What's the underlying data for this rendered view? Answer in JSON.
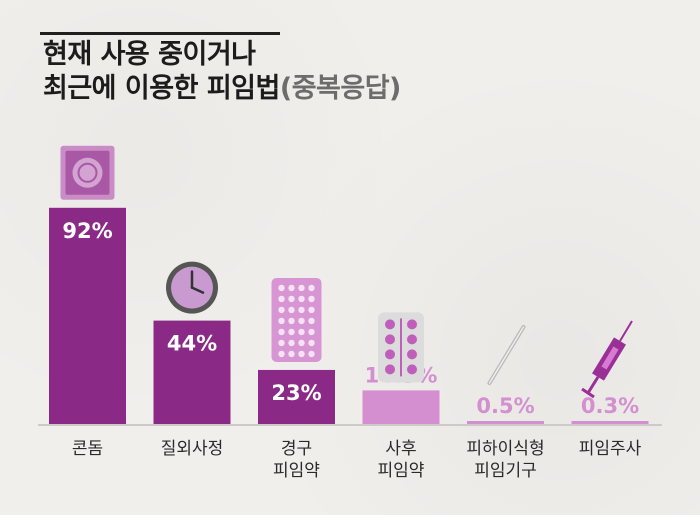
{
  "title": {
    "line1": "현재 사용 중이거나",
    "line2": "최근에 이용한 피임법",
    "note": "(중복응답)"
  },
  "chart_data": {
    "type": "bar",
    "categories": [
      "콘돔",
      "질외사정",
      "경구\n피임약",
      "사후\n피임약",
      "피하이식형\n피임기구",
      "피임주사"
    ],
    "values": [
      92,
      44,
      23,
      14.3,
      0.5,
      0.3
    ],
    "value_labels": [
      "92%",
      "44%",
      "23%",
      "14.3%",
      "0.5%",
      "0.3%"
    ],
    "ylim": [
      0,
      100
    ],
    "icons": [
      "condom-icon",
      "clock-icon",
      "pill-pack-icon",
      "pill-blister-icon",
      "implant-icon",
      "syringe-icon"
    ],
    "colors": {
      "dark": "#8a2a86",
      "light": "#d48fd0",
      "axis": "#d0c9c9",
      "label": "#2a2a2a"
    }
  }
}
